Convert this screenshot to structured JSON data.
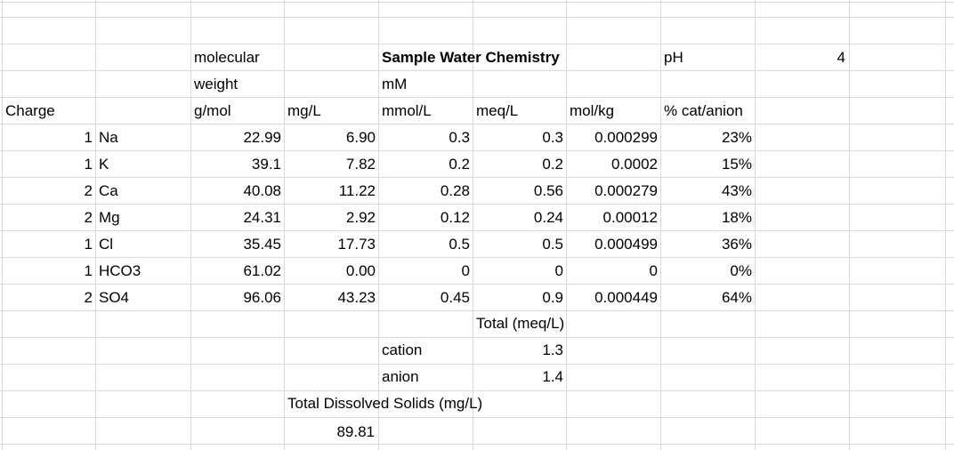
{
  "header": {
    "molecular": "molecular",
    "weight": "weight",
    "gmol": "g/mol",
    "title": "Sample Water Chemistry",
    "mM": "mM",
    "pH_label": "pH",
    "pH_value": "4",
    "charge": "Charge",
    "mgL": "mg/L",
    "mmolL": "mmol/L",
    "meqL": "meq/L",
    "molkg": "mol/kg",
    "pct": "% cat/anion"
  },
  "rows": [
    {
      "charge": "1",
      "ion": "Na",
      "mw": "22.99",
      "mgL": "6.90",
      "mmolL": "0.3",
      "meqL": "0.3",
      "molkg": "0.000299",
      "pct": "23%"
    },
    {
      "charge": "1",
      "ion": "K",
      "mw": "39.1",
      "mgL": "7.82",
      "mmolL": "0.2",
      "meqL": "0.2",
      "molkg": "0.0002",
      "pct": "15%"
    },
    {
      "charge": "2",
      "ion": "Ca",
      "mw": "40.08",
      "mgL": "11.22",
      "mmolL": "0.28",
      "meqL": "0.56",
      "molkg": "0.000279",
      "pct": "43%"
    },
    {
      "charge": "2",
      "ion": "Mg",
      "mw": "24.31",
      "mgL": "2.92",
      "mmolL": "0.12",
      "meqL": "0.24",
      "molkg": "0.00012",
      "pct": "18%"
    },
    {
      "charge": "1",
      "ion": "Cl",
      "mw": "35.45",
      "mgL": "17.73",
      "mmolL": "0.5",
      "meqL": "0.5",
      "molkg": "0.000499",
      "pct": "36%"
    },
    {
      "charge": "1",
      "ion": "HCO3",
      "mw": "61.02",
      "mgL": "0.00",
      "mmolL": "0",
      "meqL": "0",
      "molkg": "0",
      "pct": "0%"
    },
    {
      "charge": "2",
      "ion": "SO4",
      "mw": "96.06",
      "mgL": "43.23",
      "mmolL": "0.45",
      "meqL": "0.9",
      "molkg": "0.000449",
      "pct": "64%"
    }
  ],
  "totals": {
    "total_label": "Total (meq/L)",
    "cation_label": "cation",
    "cation_value": "1.3",
    "anion_label": "anion",
    "anion_value": "1.4",
    "tds_label": "Total Dissolved Solids (mg/L)",
    "tds_value": "89.81"
  },
  "colors": {
    "grid": "#d9d9d9",
    "text": "#000000"
  }
}
